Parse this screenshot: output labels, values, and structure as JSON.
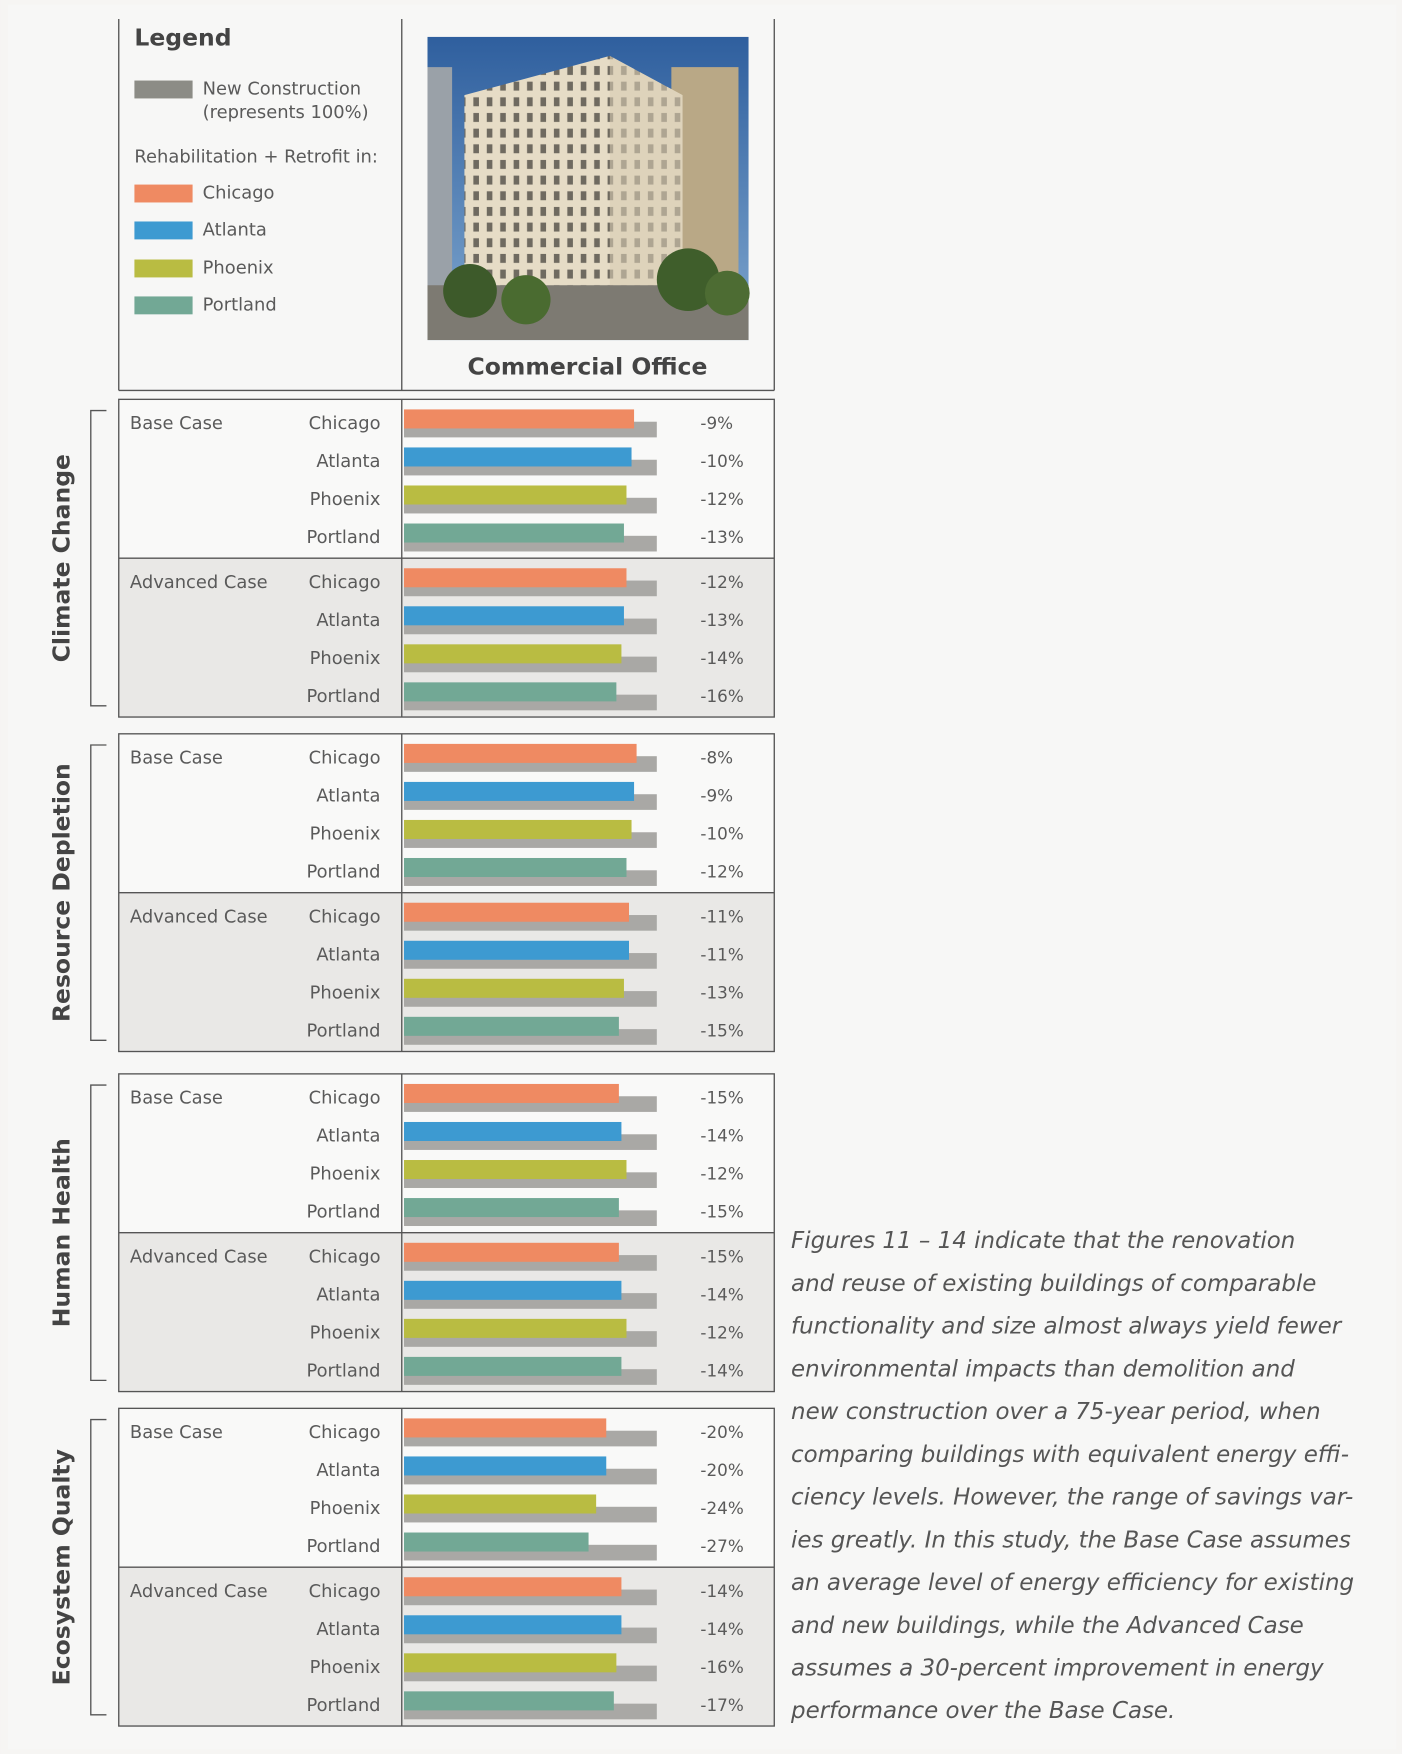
{
  "legend": {
    "title": "Legend",
    "reference": [
      "New Construction",
      "(represents 100%)"
    ],
    "reference_color": "#8c8c86",
    "subtitle": "Rehabilitation + Retrofit in:"
  },
  "figure": {
    "caption": "Commercial Office"
  },
  "chart_data": [
    {
      "type": "bar",
      "title": "Climate Change",
      "categories": [
        "Base Case",
        "Advanced Case"
      ],
      "xlim": [
        -100,
        0
      ],
      "series": [
        {
          "name": "Chicago",
          "color": "#ef8a62",
          "values": [
            -9,
            -12
          ],
          "value_labels": [
            "-9%",
            "-12%"
          ]
        },
        {
          "name": "Atlanta",
          "color": "#3d9ad1",
          "values": [
            -10,
            -13
          ],
          "value_labels": [
            "-10%",
            "-13%"
          ]
        },
        {
          "name": "Phoenix",
          "color": "#b9bc42",
          "values": [
            -12,
            -14
          ],
          "value_labels": [
            "-12%",
            "-14%"
          ]
        },
        {
          "name": "Portland",
          "color": "#72a895",
          "values": [
            -13,
            -16
          ],
          "value_labels": [
            "-13%",
            "-16%"
          ]
        }
      ]
    },
    {
      "type": "bar",
      "title": "Resource Depletion",
      "categories": [
        "Base Case",
        "Advanced Case"
      ],
      "xlim": [
        -100,
        0
      ],
      "series": [
        {
          "name": "Chicago",
          "color": "#ef8a62",
          "values": [
            -8,
            -11
          ],
          "value_labels": [
            "-8%",
            "-11%"
          ]
        },
        {
          "name": "Atlanta",
          "color": "#3d9ad1",
          "values": [
            -9,
            -11
          ],
          "value_labels": [
            "-9%",
            "-11%"
          ]
        },
        {
          "name": "Phoenix",
          "color": "#b9bc42",
          "values": [
            -10,
            -13
          ],
          "value_labels": [
            "-10%",
            "-13%"
          ]
        },
        {
          "name": "Portland",
          "color": "#72a895",
          "values": [
            -12,
            -15
          ],
          "value_labels": [
            "-12%",
            "-15%"
          ]
        }
      ]
    },
    {
      "type": "bar",
      "title": "Human Health",
      "categories": [
        "Base Case",
        "Advanced Case"
      ],
      "xlim": [
        -100,
        0
      ],
      "series": [
        {
          "name": "Chicago",
          "color": "#ef8a62",
          "values": [
            -15,
            -15
          ],
          "value_labels": [
            "-15%",
            "-15%"
          ]
        },
        {
          "name": "Atlanta",
          "color": "#3d9ad1",
          "values": [
            -14,
            -14
          ],
          "value_labels": [
            "-14%",
            "-14%"
          ]
        },
        {
          "name": "Phoenix",
          "color": "#b9bc42",
          "values": [
            -12,
            -12
          ],
          "value_labels": [
            "-12%",
            "-12%"
          ]
        },
        {
          "name": "Portland",
          "color": "#72a895",
          "values": [
            -15,
            -14
          ],
          "value_labels": [
            "-15%",
            "-14%"
          ]
        }
      ]
    },
    {
      "type": "bar",
      "title": "Ecosystem Qualty",
      "categories": [
        "Base Case",
        "Advanced Case"
      ],
      "xlim": [
        -100,
        0
      ],
      "series": [
        {
          "name": "Chicago",
          "color": "#ef8a62",
          "values": [
            -20,
            -14
          ],
          "value_labels": [
            "-20%",
            "-14%"
          ]
        },
        {
          "name": "Atlanta",
          "color": "#3d9ad1",
          "values": [
            -20,
            -14
          ],
          "value_labels": [
            "-20%",
            "-14%"
          ]
        },
        {
          "name": "Phoenix",
          "color": "#b9bc42",
          "values": [
            -24,
            -16
          ],
          "value_labels": [
            "-24%",
            "-16%"
          ]
        },
        {
          "name": "Portland",
          "color": "#72a895",
          "values": [
            -27,
            -17
          ],
          "value_labels": [
            "-27%",
            "-17%"
          ]
        }
      ]
    }
  ],
  "paragraph": [
    "Figures 11 – 14 indicate that the renovation",
    "and reuse of existing buildings of comparable",
    "functionality and size almost always yield fewer",
    "environmental impacts than demolition and",
    "new construction over a 75-year period, when",
    "comparing buildings with equivalent energy effi-",
    "ciency levels. However, the range of savings var-",
    "ies greatly. In this study, the Base Case assumes",
    "an average level of energy efficiency for existing",
    "and new buildings, while the Advanced Case",
    "assumes a 30-percent improvement in energy",
    "performance over the Base Case."
  ]
}
